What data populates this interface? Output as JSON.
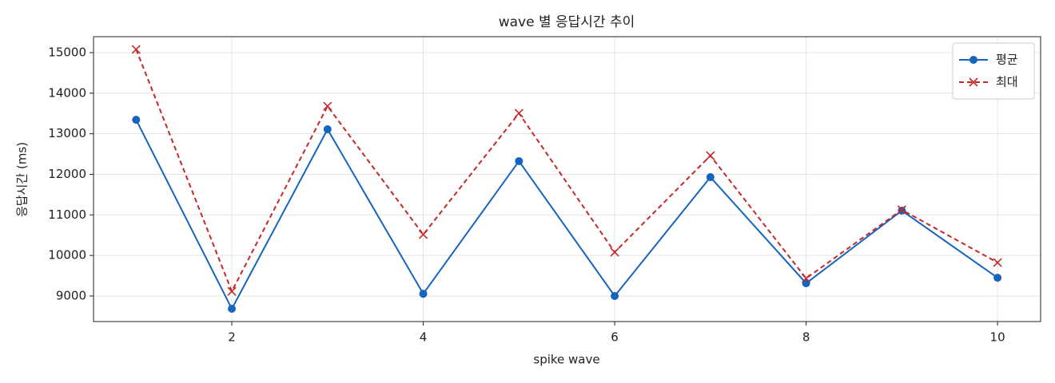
{
  "chart_data": {
    "type": "line",
    "title": "wave 별 응답시간 추이",
    "x_label": "spike wave",
    "y_label": "응답시간 (ms)",
    "x": [
      1,
      2,
      3,
      4,
      5,
      6,
      7,
      8,
      9,
      10
    ],
    "series": [
      {
        "name": "평균",
        "color": "#1565c0",
        "marker": "circle",
        "dash": false,
        "values": [
          13345,
          8685,
          13110,
          9055,
          12325,
          9000,
          11930,
          9315,
          11105,
          9450
        ]
      },
      {
        "name": "최대",
        "color": "#c62828",
        "marker": "x",
        "dash": true,
        "values": [
          15080,
          9115,
          13680,
          10515,
          13505,
          10080,
          12460,
          9435,
          11125,
          9825
        ]
      }
    ],
    "xlim": [
      0.555,
      10.45
    ],
    "xticks": [
      2,
      4,
      6,
      8,
      10
    ],
    "ylim": [
      8370,
      15393
    ],
    "yticks": [
      9000,
      10000,
      11000,
      12000,
      13000,
      14000,
      15000
    ],
    "grid": true,
    "legend": "upper right"
  }
}
